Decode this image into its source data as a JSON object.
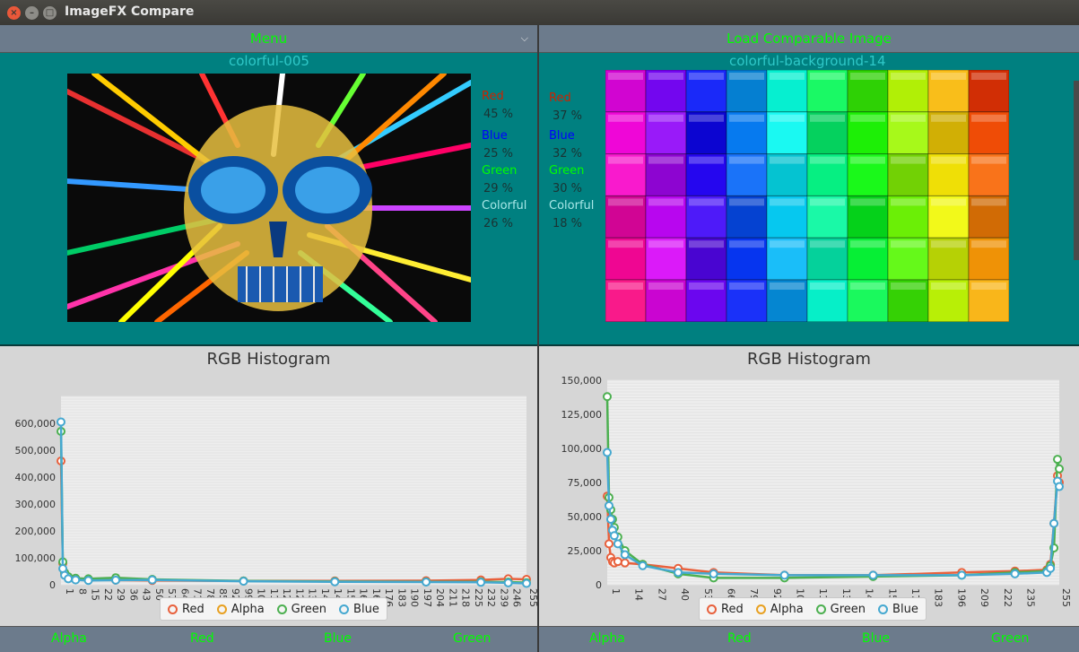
{
  "window": {
    "title": "ImageFX Compare"
  },
  "left": {
    "topbar_label": "Menu",
    "image_title": "colorful-005",
    "stats": [
      {
        "label": "Red",
        "value": "45 %",
        "color": "#cc2200"
      },
      {
        "label": "Blue",
        "value": "25 %",
        "color": "#0000ff"
      },
      {
        "label": "Green",
        "value": "29 %",
        "color": "#00ff00"
      },
      {
        "label": "Colorful",
        "value": "26 %",
        "color": "#a8e8e8"
      }
    ],
    "bottom_tabs": [
      "Alpha",
      "Red",
      "Blue",
      "Green"
    ]
  },
  "right": {
    "topbar_label": "Load Comparable Image",
    "image_title": "colorful-background-14",
    "stats": [
      {
        "label": "Red",
        "value": "37 %",
        "color": "#cc2200"
      },
      {
        "label": "Blue",
        "value": "32 %",
        "color": "#0000ff"
      },
      {
        "label": "Green",
        "value": "30 %",
        "color": "#00ff00"
      },
      {
        "label": "Colorful",
        "value": "18 %",
        "color": "#a8e8e8"
      }
    ],
    "bottom_tabs": [
      "Alpha",
      "Red",
      "Blue",
      "Green"
    ]
  },
  "legend": [
    {
      "name": "Red",
      "color": "#e8603c"
    },
    {
      "name": "Alpha",
      "color": "#e8a020"
    },
    {
      "name": "Green",
      "color": "#4cb050"
    },
    {
      "name": "Blue",
      "color": "#45a8d0"
    }
  ],
  "chart_data": [
    {
      "type": "line",
      "title": "RGB Histogram",
      "xlim": [
        0,
        255
      ],
      "ylim": [
        0,
        700000
      ],
      "xticks": [
        "1",
        "8",
        "15",
        "22",
        "29",
        "36",
        "43",
        "50",
        "57",
        "64",
        "71",
        "78",
        "85",
        "92",
        "99",
        "106",
        "113",
        "120",
        "127",
        "134",
        "141",
        "148",
        "155",
        "162",
        "169",
        "176",
        "183",
        "190",
        "197",
        "204",
        "211",
        "218",
        "225",
        "232",
        "239",
        "246",
        "255"
      ],
      "yticks": [
        "0",
        "100,000",
        "200,000",
        "300,000",
        "400,000",
        "500,000",
        "600,000"
      ],
      "series": [
        {
          "name": "Red",
          "x": [
            0,
            1,
            2,
            4,
            8,
            15,
            30,
            50,
            100,
            150,
            200,
            230,
            245,
            255
          ],
          "values": [
            460000,
            80000,
            40000,
            28000,
            20000,
            18000,
            17000,
            16000,
            14000,
            14000,
            15000,
            18000,
            22000,
            20000
          ]
        },
        {
          "name": "Green",
          "x": [
            0,
            1,
            2,
            4,
            8,
            15,
            30,
            50,
            100,
            150,
            200,
            230,
            245,
            255
          ],
          "values": [
            570000,
            85000,
            45000,
            30000,
            24000,
            22000,
            26000,
            20000,
            14000,
            12000,
            11000,
            11000,
            10000,
            8000
          ]
        },
        {
          "name": "Blue",
          "x": [
            0,
            1,
            2,
            4,
            8,
            15,
            30,
            50,
            100,
            150,
            200,
            230,
            245,
            255
          ],
          "values": [
            605000,
            60000,
            35000,
            22000,
            18000,
            16000,
            17000,
            18000,
            13000,
            11000,
            10000,
            9000,
            7000,
            5000
          ]
        }
      ]
    },
    {
      "type": "line",
      "title": "RGB Histogram",
      "xlim": [
        0,
        255
      ],
      "ylim": [
        0,
        150000
      ],
      "xticks": [
        "1",
        "14",
        "27",
        "40",
        "53",
        "66",
        "79",
        "92",
        "105",
        "118",
        "131",
        "144",
        "157",
        "170",
        "183",
        "196",
        "209",
        "222",
        "235",
        "255"
      ],
      "yticks": [
        "0",
        "25,000",
        "50,000",
        "75,000",
        "100,000",
        "125,000",
        "150,000"
      ],
      "series": [
        {
          "name": "Red",
          "x": [
            0,
            1,
            2,
            3,
            4,
            6,
            10,
            20,
            40,
            60,
            100,
            150,
            200,
            230,
            248,
            250,
            252,
            254,
            255
          ],
          "values": [
            65000,
            30000,
            20000,
            17000,
            16000,
            17000,
            16000,
            15000,
            12000,
            9000,
            7000,
            7000,
            9000,
            10000,
            11000,
            15000,
            45000,
            80000,
            75000
          ]
        },
        {
          "name": "Green",
          "x": [
            0,
            1,
            2,
            3,
            4,
            6,
            10,
            20,
            40,
            60,
            100,
            150,
            200,
            230,
            248,
            250,
            252,
            254,
            255
          ],
          "values": [
            138000,
            64000,
            55000,
            48000,
            42000,
            35000,
            25000,
            15000,
            8000,
            5000,
            5000,
            6000,
            7000,
            9000,
            10000,
            14000,
            27000,
            92000,
            85000
          ]
        },
        {
          "name": "Blue",
          "x": [
            0,
            1,
            2,
            3,
            4,
            6,
            10,
            20,
            40,
            60,
            100,
            150,
            200,
            230,
            248,
            250,
            252,
            254,
            255
          ],
          "values": [
            97000,
            58000,
            48000,
            40000,
            36000,
            30000,
            22000,
            14000,
            9000,
            8000,
            7000,
            7000,
            7000,
            8000,
            9000,
            12000,
            45000,
            76000,
            72000
          ]
        }
      ]
    }
  ]
}
